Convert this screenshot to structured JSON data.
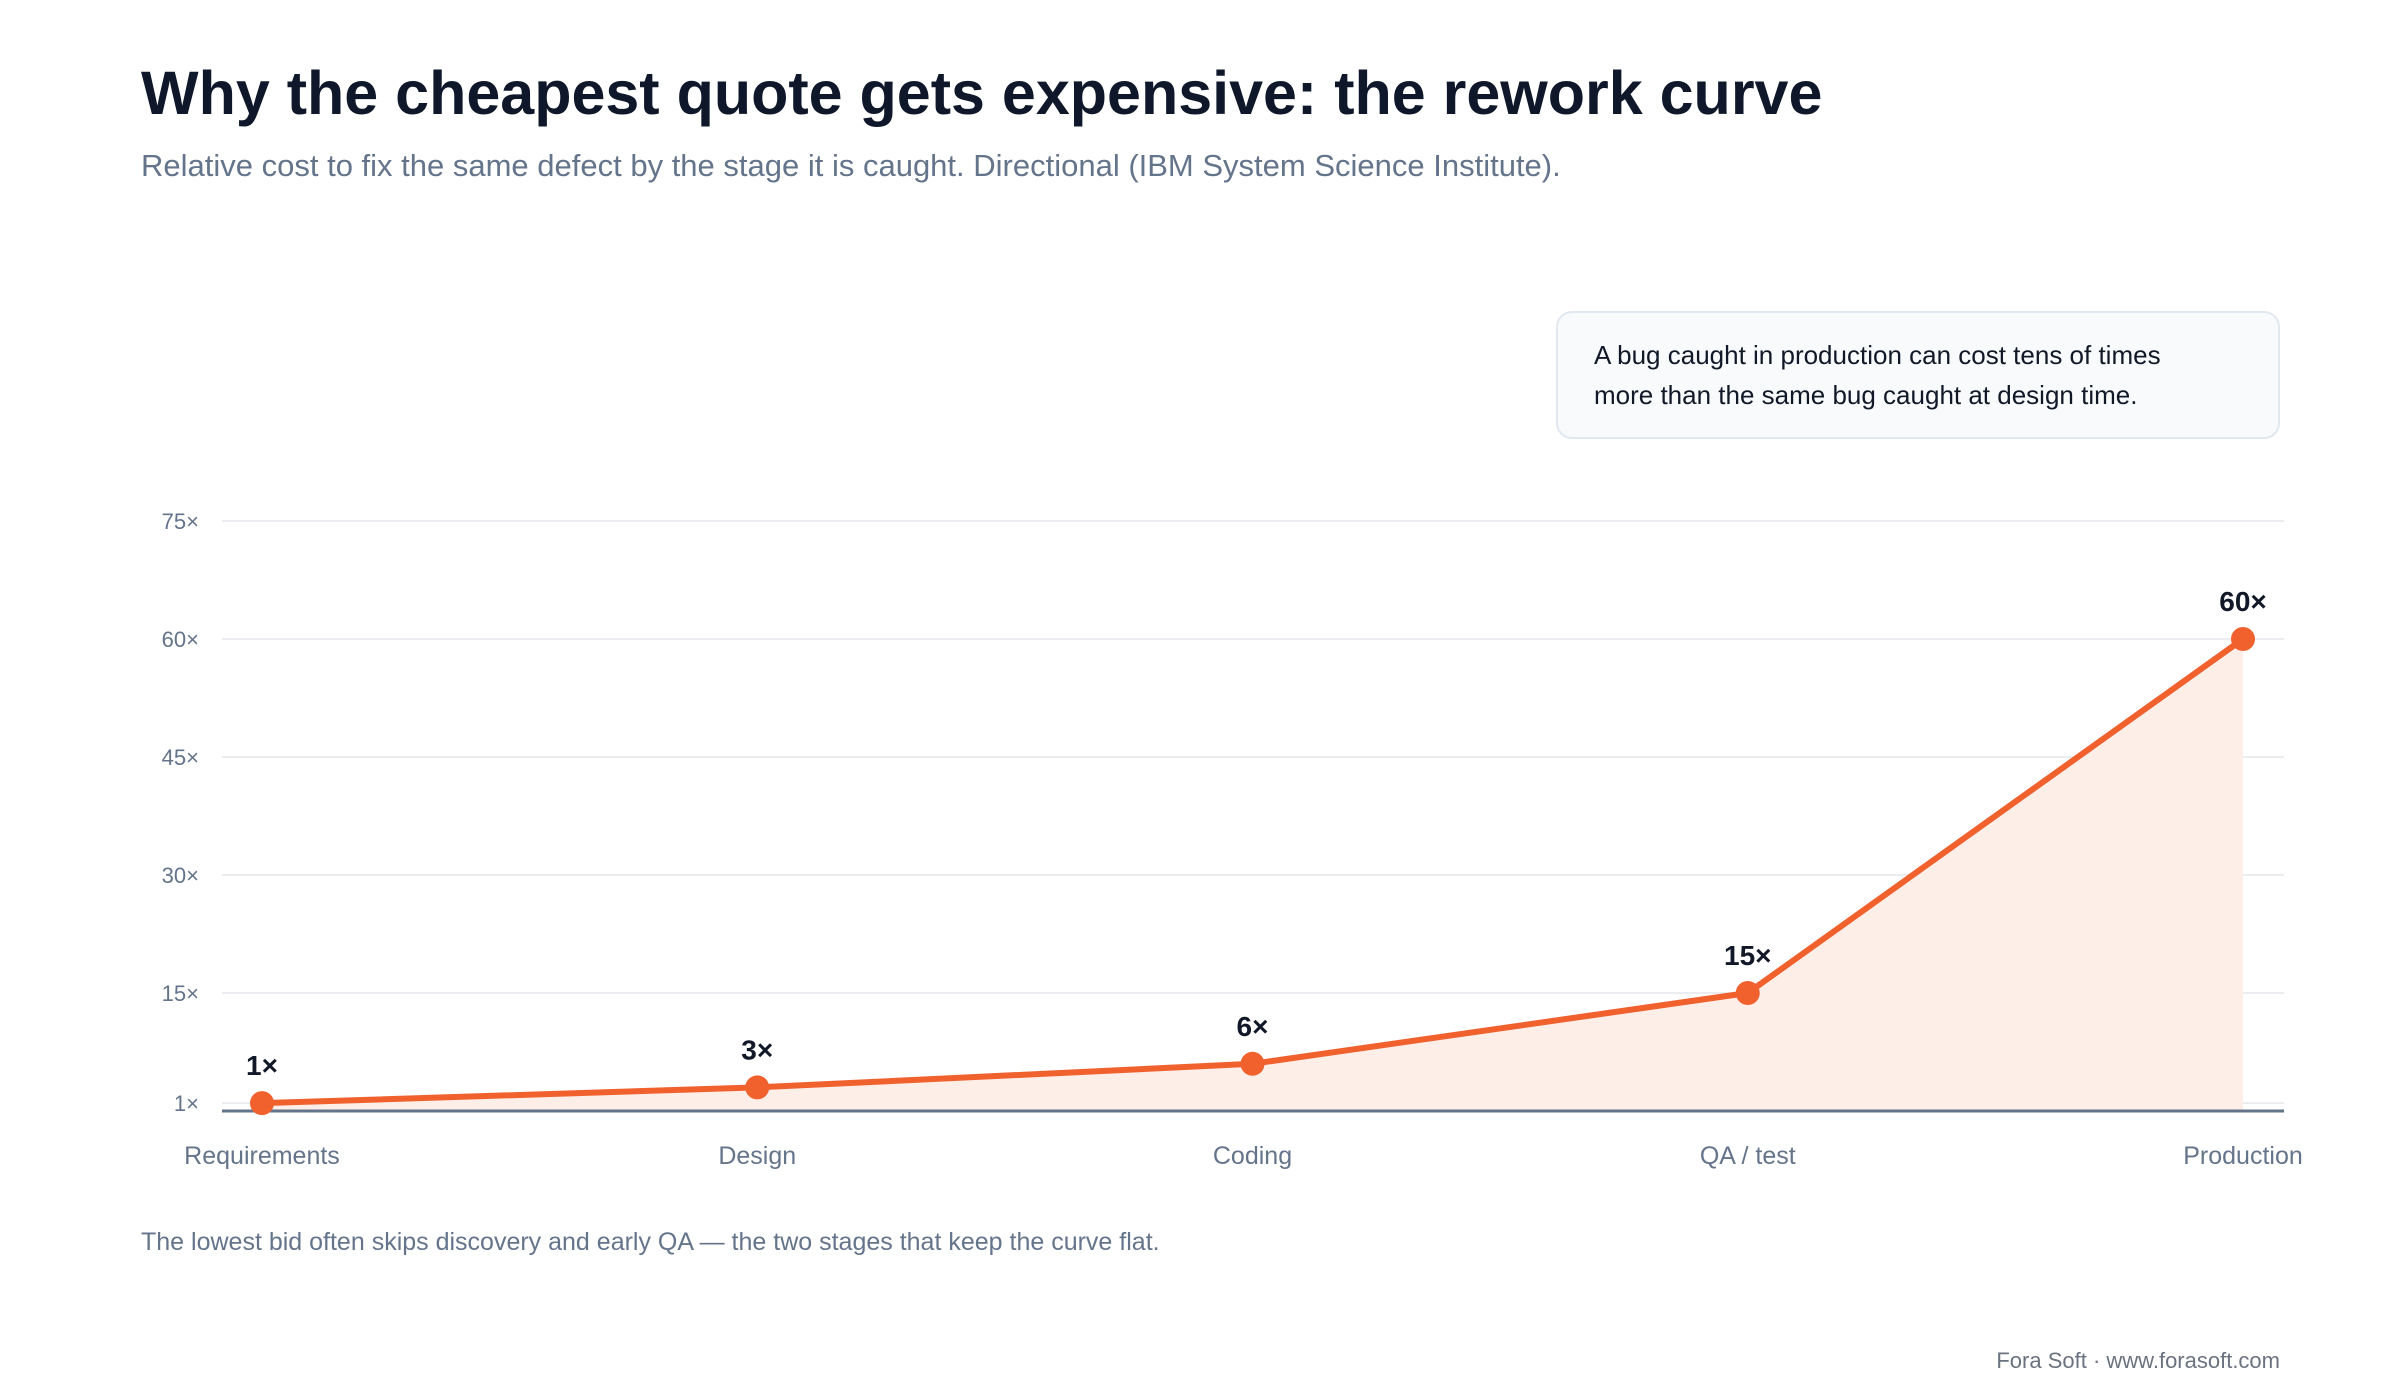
{
  "header": {
    "title": "Why the cheapest quote gets expensive: the rework curve",
    "subtitle": "Relative cost to fix the same defect by the stage it is caught. Directional (IBM System Science Institute)."
  },
  "callout": {
    "line1": "A bug caught in production can cost tens of times",
    "line2": "more than the same bug caught at design time."
  },
  "chart_data": {
    "type": "line",
    "categories": [
      "Requirements",
      "Design",
      "Coding",
      "QA / test",
      "Production"
    ],
    "values": [
      1,
      3,
      6,
      15,
      60
    ],
    "data_labels": [
      "1×",
      "3×",
      "6×",
      "15×",
      "60×"
    ],
    "yticks": [
      1,
      15,
      30,
      45,
      60,
      75
    ],
    "ytick_labels": [
      "1×",
      "15×",
      "30×",
      "45×",
      "60×",
      "75×"
    ],
    "ylim": [
      0,
      75
    ],
    "grid": true,
    "area_fill": true,
    "title": "",
    "xlabel": "",
    "ylabel": ""
  },
  "colors": {
    "line": "#f0612e",
    "area": "#fdeee8",
    "grid": "#e5e7eb",
    "axis": "#64748b",
    "label": "#111827"
  },
  "footnote": "The lowest bid often skips discovery and early QA — the two stages that keep the curve flat.",
  "credit": "Fora Soft · www.forasoft.com"
}
